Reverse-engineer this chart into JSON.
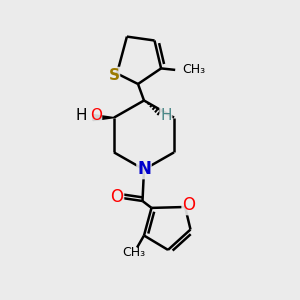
{
  "background_color": "#ebebeb",
  "atom_colors": {
    "S": "#9b7a00",
    "O": "#ff0000",
    "N": "#0000cc",
    "C": "#000000",
    "H": "#4a8888"
  },
  "bond_color": "#000000",
  "bond_width": 1.8,
  "font_size": 11
}
